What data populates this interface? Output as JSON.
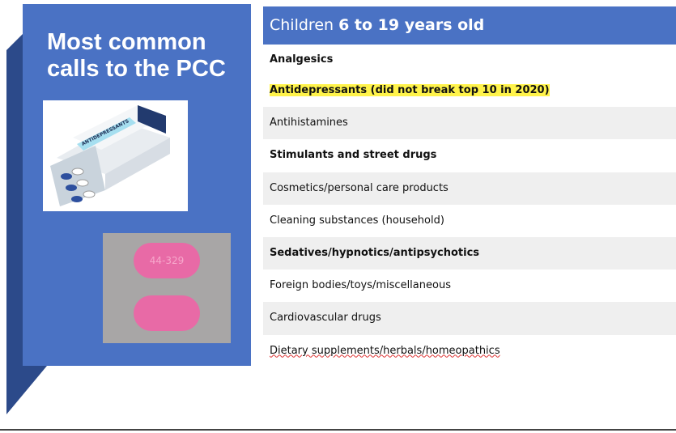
{
  "panel": {
    "title": "Most common calls to the PCC",
    "box_label": "ANTIDEPRESSANTS",
    "pill_imprint": "44-329"
  },
  "table": {
    "header": [
      "Children ",
      "6 to 19 years old"
    ],
    "rows": [
      {
        "text": "Analgesics",
        "bold": true,
        "shade": false
      },
      {
        "text": "Antidepressants (did not break top 10 in 2020)",
        "bold": true,
        "shade": false,
        "highlight": true
      },
      {
        "text": "Antihistamines",
        "bold": false,
        "shade": true
      },
      {
        "text": "Stimulants and street drugs",
        "bold": true,
        "shade": false
      },
      {
        "text": "Cosmetics/personal care products",
        "bold": false,
        "shade": true
      },
      {
        "text": "Cleaning substances (household)",
        "bold": false,
        "shade": false
      },
      {
        "text": "Sedatives/hypnotics/antipsychotics",
        "bold": true,
        "shade": true
      },
      {
        "text": "Foreign bodies/toys/miscellaneous",
        "bold": false,
        "shade": false
      },
      {
        "text": "Cardiovascular drugs",
        "bold": false,
        "shade": true
      },
      {
        "text": "Dietary supplements/herbals/homeopathics",
        "bold": false,
        "shade": false
      }
    ]
  }
}
